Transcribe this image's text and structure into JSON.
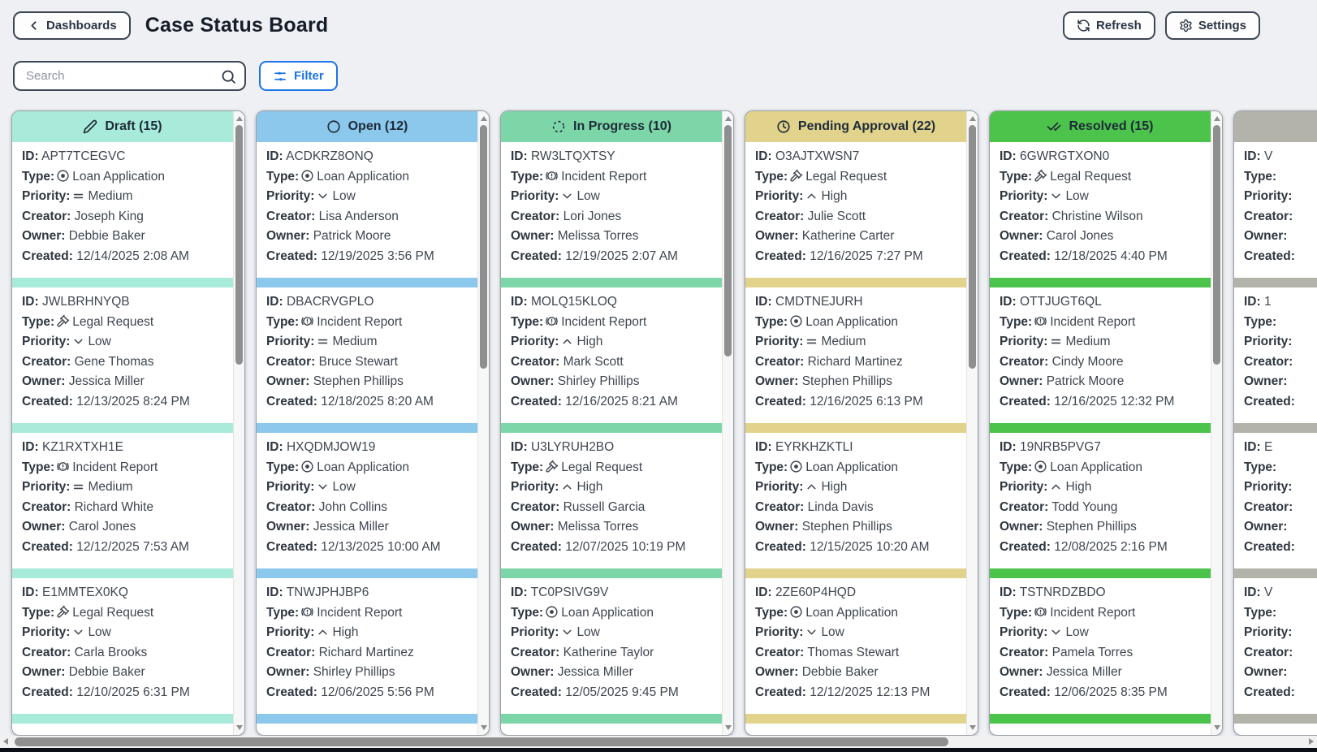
{
  "header": {
    "back_label": "Dashboards",
    "title": "Case Status Board",
    "refresh_label": "Refresh",
    "settings_label": "Settings"
  },
  "toolbar": {
    "search_placeholder": "Search",
    "filter_label": "Filter"
  },
  "board": {
    "field_labels": {
      "id": "ID:",
      "type": "Type:",
      "priority": "Priority:",
      "creator": "Creator:",
      "owner": "Owner:",
      "created": "Created:"
    },
    "type_icons": {
      "Loan Application": "disc-icon",
      "Incident Report": "alert-circle-icon",
      "Legal Request": "gavel-icon"
    },
    "priority_icons": {
      "Low": "chevron-down-icon",
      "Medium": "equals-icon",
      "High": "chevron-up-icon"
    },
    "columns": [
      {
        "title": "Draft (15)",
        "icon": "pencil-icon",
        "color": "#a8ebdb",
        "thumb_height": 295,
        "cards": [
          {
            "id": "APT7TCEGVC",
            "type": "Loan Application",
            "priority": "Medium",
            "creator": "Joseph King",
            "owner": "Debbie Baker",
            "created": "12/14/2025 2:08 AM"
          },
          {
            "id": "JWLBRHNYQB",
            "type": "Legal Request",
            "priority": "Low",
            "creator": "Gene Thomas",
            "owner": "Jessica Miller",
            "created": "12/13/2025 8:24 PM"
          },
          {
            "id": "KZ1RXTXH1E",
            "type": "Incident Report",
            "priority": "Medium",
            "creator": "Richard White",
            "owner": "Carol Jones",
            "created": "12/12/2025 7:53 AM"
          },
          {
            "id": "E1MMTEX0KQ",
            "type": "Legal Request",
            "priority": "Low",
            "creator": "Carla Brooks",
            "owner": "Debbie Baker",
            "created": "12/10/2025 6:31 PM"
          }
        ]
      },
      {
        "title": "Open (12)",
        "icon": "circle-icon",
        "color": "#8cc7ec",
        "thumb_height": 300,
        "cards": [
          {
            "id": "ACDKRZ8ONQ",
            "type": "Loan Application",
            "priority": "Low",
            "creator": "Lisa Anderson",
            "owner": "Patrick Moore",
            "created": "12/19/2025 3:56 PM"
          },
          {
            "id": "DBACRVGPLO",
            "type": "Incident Report",
            "priority": "Medium",
            "creator": "Bruce Stewart",
            "owner": "Stephen Phillips",
            "created": "12/18/2025 8:20 AM"
          },
          {
            "id": "HXQDMJOW19",
            "type": "Loan Application",
            "priority": "Low",
            "creator": "John Collins",
            "owner": "Jessica Miller",
            "created": "12/13/2025 10:00 AM"
          },
          {
            "id": "TNWJPHJBP6",
            "type": "Incident Report",
            "priority": "High",
            "creator": "Richard Martinez",
            "owner": "Shirley Phillips",
            "created": "12/06/2025 5:56 PM"
          }
        ]
      },
      {
        "title": "In Progress (10)",
        "icon": "spinner-icon",
        "color": "#7dd6a8",
        "thumb_height": 285,
        "cards": [
          {
            "id": "RW3LTQXTSY",
            "type": "Incident Report",
            "priority": "Low",
            "creator": "Lori Jones",
            "owner": "Melissa Torres",
            "created": "12/19/2025 2:07 AM"
          },
          {
            "id": "MOLQ15KLOQ",
            "type": "Incident Report",
            "priority": "High",
            "creator": "Mark Scott",
            "owner": "Shirley Phillips",
            "created": "12/16/2025 8:21 AM"
          },
          {
            "id": "U3LYRUH2BO",
            "type": "Legal Request",
            "priority": "High",
            "creator": "Russell Garcia",
            "owner": "Melissa Torres",
            "created": "12/07/2025 10:19 PM"
          },
          {
            "id": "TC0PSIVG9V",
            "type": "Loan Application",
            "priority": "Low",
            "creator": "Katherine Taylor",
            "owner": "Jessica Miller",
            "created": "12/05/2025 9:45 PM"
          }
        ]
      },
      {
        "title": "Pending Approval (22)",
        "icon": "clock-icon",
        "color": "#e2d38c",
        "thumb_height": 300,
        "cards": [
          {
            "id": "O3AJTXWSN7",
            "type": "Legal Request",
            "priority": "High",
            "creator": "Julie Scott",
            "owner": "Katherine Carter",
            "created": "12/16/2025 7:27 PM"
          },
          {
            "id": "CMDTNEJURH",
            "type": "Loan Application",
            "priority": "Medium",
            "creator": "Richard Martinez",
            "owner": "Stephen Phillips",
            "created": "12/16/2025 6:13 PM"
          },
          {
            "id": "EYRKHZKTLI",
            "type": "Loan Application",
            "priority": "High",
            "creator": "Linda Davis",
            "owner": "Stephen Phillips",
            "created": "12/15/2025 10:20 AM"
          },
          {
            "id": "2ZE60P4HQD",
            "type": "Loan Application",
            "priority": "Low",
            "creator": "Thomas Stewart",
            "owner": "Debbie Baker",
            "created": "12/12/2025 12:13 PM"
          }
        ]
      },
      {
        "title": "Resolved (15)",
        "icon": "check-check-icon",
        "color": "#4cc44c",
        "thumb_height": 295,
        "cards": [
          {
            "id": "6GWRGTXON0",
            "type": "Legal Request",
            "priority": "Low",
            "creator": "Christine Wilson",
            "owner": "Carol Jones",
            "created": "12/18/2025 4:40 PM"
          },
          {
            "id": "OTTJUGT6QL",
            "type": "Incident Report",
            "priority": "Medium",
            "creator": "Cindy Moore",
            "owner": "Patrick Moore",
            "created": "12/16/2025 12:32 PM"
          },
          {
            "id": "19NRB5PVG7",
            "type": "Loan Application",
            "priority": "High",
            "creator": "Todd Young",
            "owner": "Stephen Phillips",
            "created": "12/08/2025 2:16 PM"
          },
          {
            "id": "TSTNRDZBDO",
            "type": "Incident Report",
            "priority": "Low",
            "creator": "Pamela Torres",
            "owner": "Jessica Miller",
            "created": "12/06/2025 8:35 PM"
          }
        ]
      },
      {
        "title": "",
        "icon": "",
        "color": "#b3b3aa",
        "thumb_height": 295,
        "clipped": true,
        "cards": [
          {
            "id": "V",
            "type": "",
            "priority": "",
            "creator": "",
            "owner": "",
            "created": ""
          },
          {
            "id": "1",
            "type": "",
            "priority": "",
            "creator": "",
            "owner": "",
            "created": ""
          },
          {
            "id": "E",
            "type": "",
            "priority": "",
            "creator": "",
            "owner": "",
            "created": ""
          },
          {
            "id": "V",
            "type": "",
            "priority": "",
            "creator": "",
            "owner": "",
            "created": ""
          }
        ]
      }
    ]
  }
}
